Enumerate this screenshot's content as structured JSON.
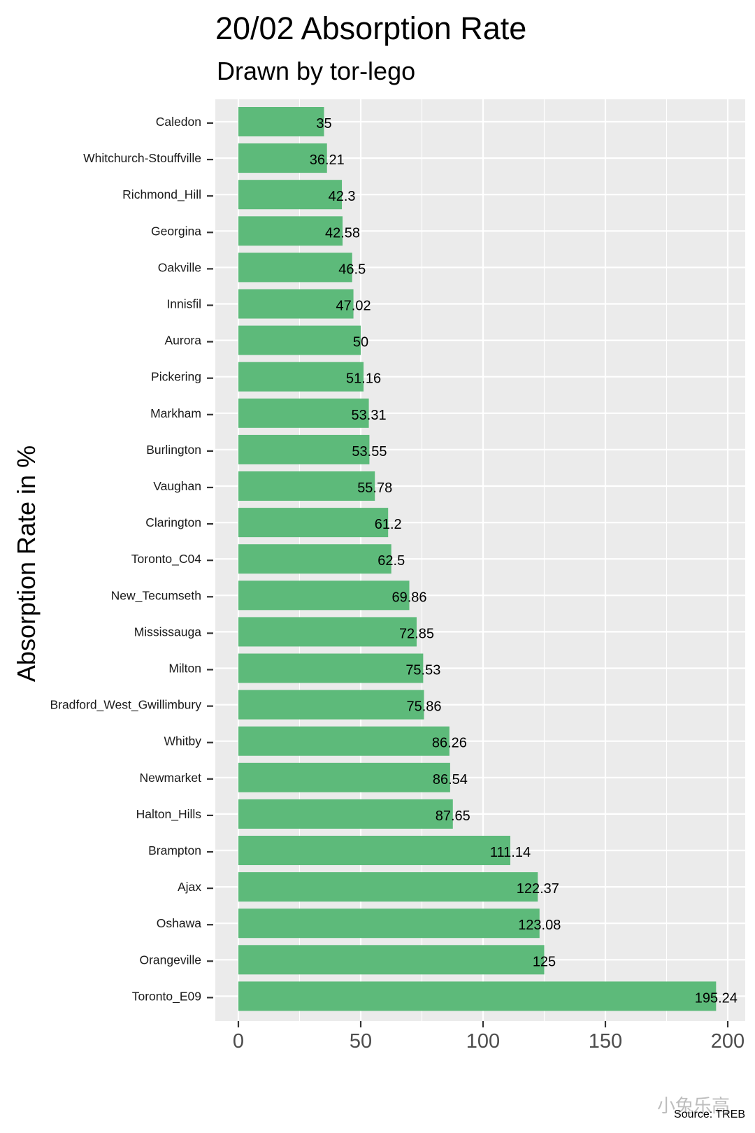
{
  "chart_data": {
    "type": "bar",
    "orientation": "horizontal",
    "title": "20/02 Absorption Rate",
    "subtitle": "Drawn by tor-lego",
    "xlabel": "",
    "ylabel": "Absorption Rate in %",
    "caption": "Source: TREB",
    "xlim": [
      0,
      205
    ],
    "x_ticks": [
      0,
      50,
      100,
      150,
      200
    ],
    "bar_color": "#5dba7a",
    "panel_color": "#ebebeb",
    "grid_color": "#ffffff",
    "categories": [
      "Caledon",
      "Whitchurch-Stouffville",
      "Richmond_Hill",
      "Georgina",
      "Oakville",
      "Innisfil",
      "Aurora",
      "Pickering",
      "Markham",
      "Burlington",
      "Vaughan",
      "Clarington",
      "Toronto_C04",
      "New_Tecumseth",
      "Mississauga",
      "Milton",
      "Bradford_West_Gwillimbury",
      "Whitby",
      "Newmarket",
      "Halton_Hills",
      "Brampton",
      "Ajax",
      "Oshawa",
      "Orangeville",
      "Toronto_E09"
    ],
    "values": [
      35,
      36.21,
      42.3,
      42.58,
      46.5,
      47.02,
      50,
      51.16,
      53.31,
      53.55,
      55.78,
      61.2,
      62.5,
      69.86,
      72.85,
      75.53,
      75.86,
      86.26,
      86.54,
      87.65,
      111.14,
      122.37,
      123.08,
      125,
      195.24
    ],
    "value_labels": [
      "35",
      "36.21",
      "42.3",
      "42.58",
      "46.5",
      "47.02",
      "50",
      "51.16",
      "53.31",
      "53.55",
      "55.78",
      "61.2",
      "62.5",
      "69.86",
      "72.85",
      "75.53",
      "75.86",
      "86.26",
      "86.54",
      "87.65",
      "111.14",
      "122.37",
      "123.08",
      "125",
      "195.24"
    ]
  },
  "watermark": "小兔乐高"
}
